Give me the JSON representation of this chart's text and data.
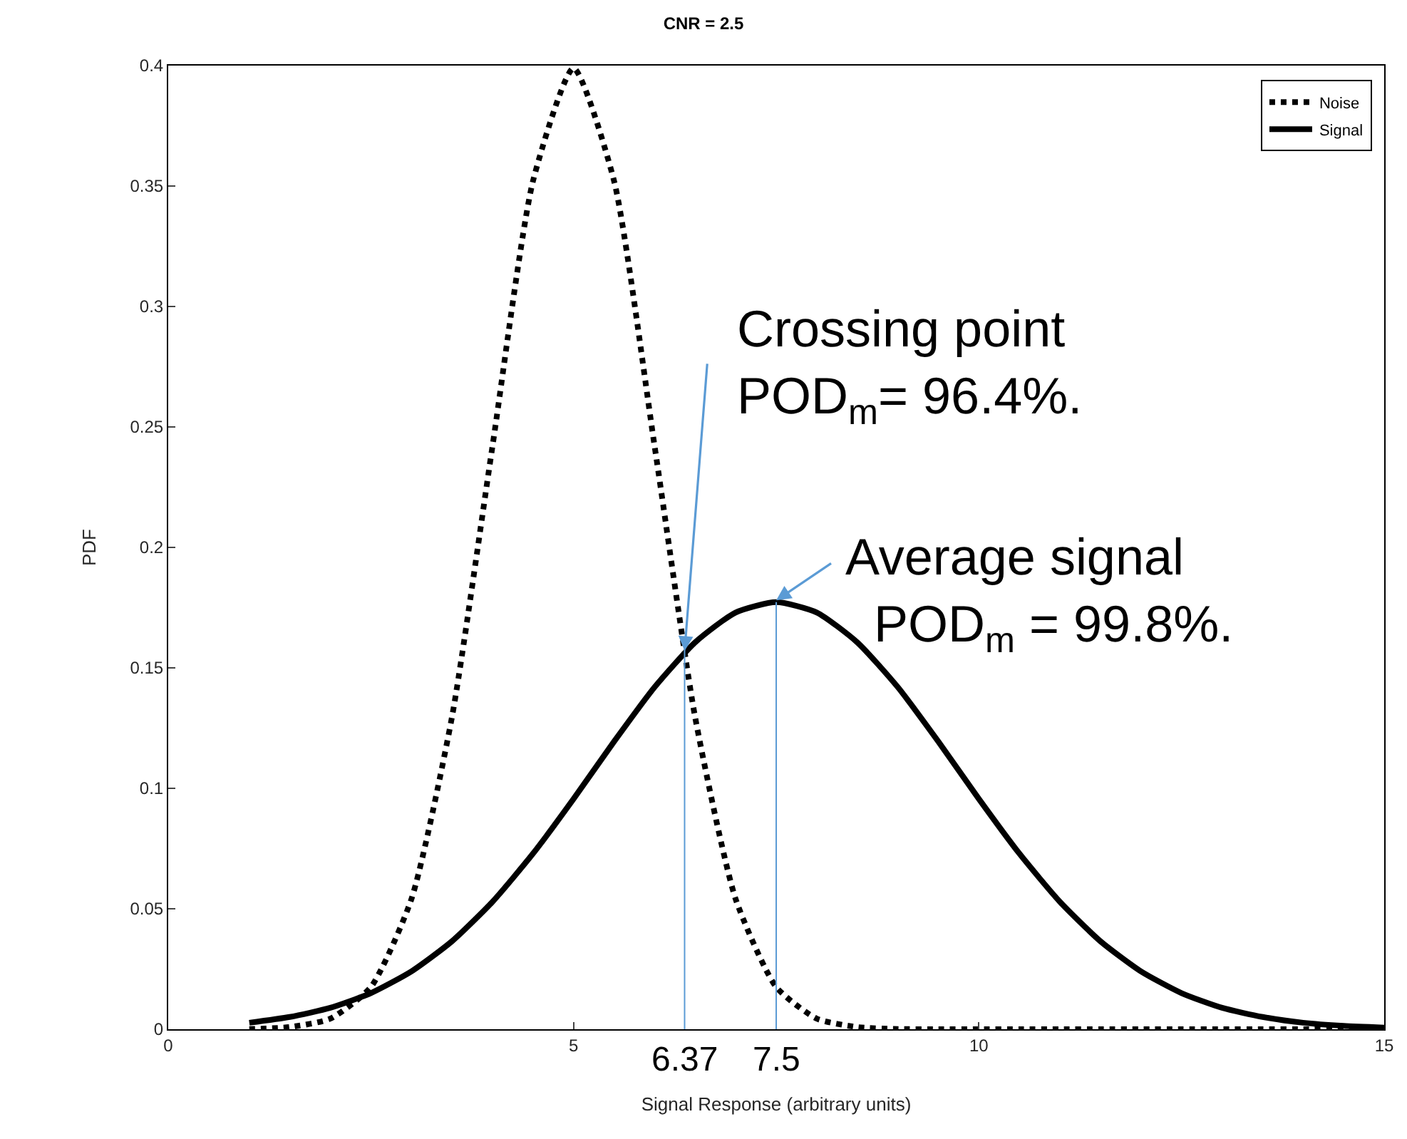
{
  "chart_data": {
    "type": "line",
    "title": "CNR = 2.5",
    "xlabel": "Signal Response (arbitrary units)",
    "ylabel": "PDF",
    "x": [
      1,
      1.5,
      2,
      2.5,
      3,
      3.5,
      4,
      4.5,
      5,
      5.5,
      6,
      6.5,
      7,
      7.5,
      8,
      8.5,
      9,
      9.5,
      10,
      10.5,
      11,
      11.5,
      12,
      12.5,
      13,
      13.5,
      14,
      14.5,
      15
    ],
    "series": [
      {
        "name": "Noise",
        "color": "#000000",
        "line_style": "dotted",
        "values": [
          0.0001,
          0.0009,
          0.0044,
          0.0175,
          0.054,
          0.1295,
          0.242,
          0.3521,
          0.3989,
          0.3521,
          0.242,
          0.1295,
          0.054,
          0.0175,
          0.0044,
          0.0009,
          0.0001,
          0,
          0,
          0,
          0,
          0,
          0,
          0,
          0,
          0,
          0,
          0,
          0
        ]
      },
      {
        "name": "Signal",
        "color": "#000000",
        "line_style": "solid",
        "values": [
          0.0027,
          0.0051,
          0.0089,
          0.015,
          0.024,
          0.0365,
          0.0529,
          0.0729,
          0.0956,
          0.1194,
          0.142,
          0.1606,
          0.173,
          0.1773,
          0.173,
          0.1606,
          0.142,
          0.1194,
          0.0956,
          0.0729,
          0.0529,
          0.0365,
          0.024,
          0.015,
          0.0089,
          0.0051,
          0.0027,
          0.0014,
          0.0007
        ]
      }
    ],
    "xlim": [
      0,
      15
    ],
    "xticks": [
      0,
      5,
      10,
      15
    ],
    "ylim": [
      0,
      0.4
    ],
    "yticks": [
      0,
      0.05,
      0.1,
      0.15,
      0.2,
      0.25,
      0.3,
      0.35,
      0.4
    ],
    "grid": false,
    "legend": "top right",
    "marker": "none",
    "ref_lines": [
      {
        "axis": "x",
        "value": 6.37,
        "label": "6.37",
        "color": "#5b9bd5"
      },
      {
        "axis": "x",
        "value": 7.5,
        "label": "7.5",
        "color": "#5b9bd5"
      }
    ],
    "annotations": [
      {
        "text": "Crossing point\nPOD$_{m}$= 96.4%.",
        "x": 6.37,
        "y": 0.157
      },
      {
        "text": "Average signal\n  POD$_{m}$ = 99.8%.",
        "x": 7.5,
        "y": 0.178
      }
    ]
  }
}
